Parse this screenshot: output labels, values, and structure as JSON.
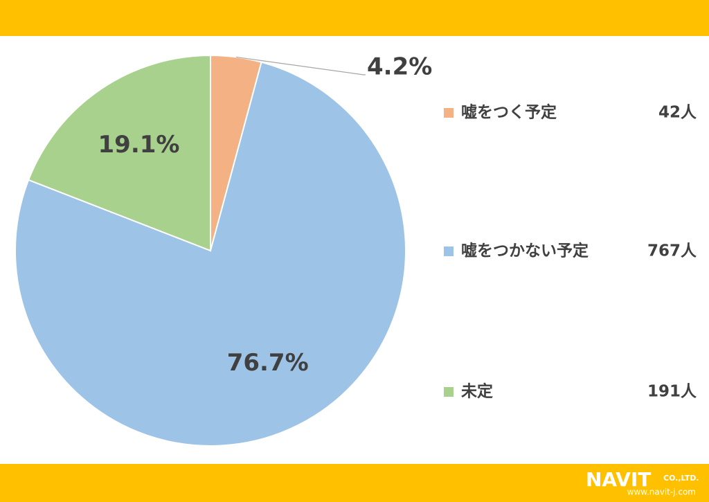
{
  "chart_data": {
    "type": "pie",
    "categories": [
      "嘘をつく予定",
      "嘘をつかない予定",
      "未定"
    ],
    "values": [
      4.2,
      76.7,
      19.1
    ],
    "value_labels": [
      "4.2%",
      "76.7%",
      "19.1%"
    ],
    "counts": [
      42,
      767,
      191
    ],
    "count_labels": [
      "42人",
      "767人",
      "191人"
    ],
    "colors": [
      "#F4B183",
      "#9DC3E6",
      "#A9D18E"
    ],
    "legend": "right"
  },
  "footer": {
    "logo": "NAVIT",
    "company": "CO.,LTD.",
    "url": "www.navit-j.com"
  }
}
